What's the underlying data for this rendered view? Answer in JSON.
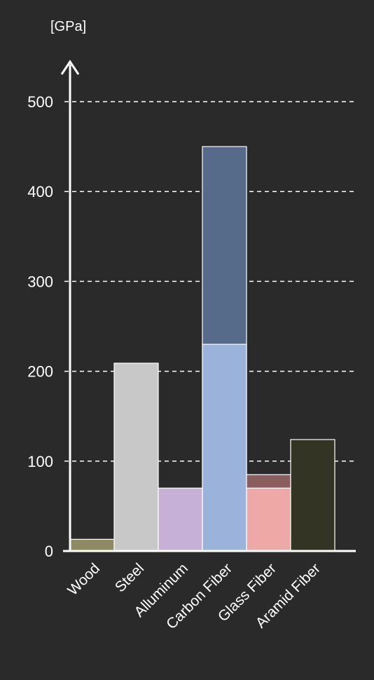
{
  "chart_data": {
    "type": "bar",
    "unit_label": "[GPa]",
    "ylim": [
      0,
      500
    ],
    "yticks": [
      0,
      100,
      200,
      300,
      400,
      500
    ],
    "grid": true,
    "categories": [
      "Wood",
      "Steel",
      "Alluminum",
      "Carbon Fiber",
      "Glass Fiber",
      "Aramid Fiber"
    ],
    "bars": [
      {
        "category": "Wood",
        "segments": [
          {
            "value": 13,
            "color": "#8f8a62"
          }
        ]
      },
      {
        "category": "Steel",
        "segments": [
          {
            "value": 209,
            "color": "#c8c8c8"
          }
        ]
      },
      {
        "category": "Alluminum",
        "segments": [
          {
            "value": 70,
            "color": "#c6b0d8"
          }
        ]
      },
      {
        "category": "Carbon Fiber",
        "segments": [
          {
            "value": 230,
            "color": "#9bb3db"
          },
          {
            "value": 450,
            "color": "#566a8a"
          }
        ]
      },
      {
        "category": "Glass Fiber",
        "segments": [
          {
            "value": 70,
            "color": "#eea9a6"
          },
          {
            "value": 85,
            "color": "#8a5e5e"
          }
        ]
      },
      {
        "category": "Aramid Fiber",
        "segments": [
          {
            "value": 124,
            "color": "#343424"
          }
        ]
      }
    ],
    "colors": {
      "background": "#2a2a2a",
      "axis": "#ffffff",
      "grid": "#ffffff",
      "bar_outline": "#ffffff"
    }
  }
}
